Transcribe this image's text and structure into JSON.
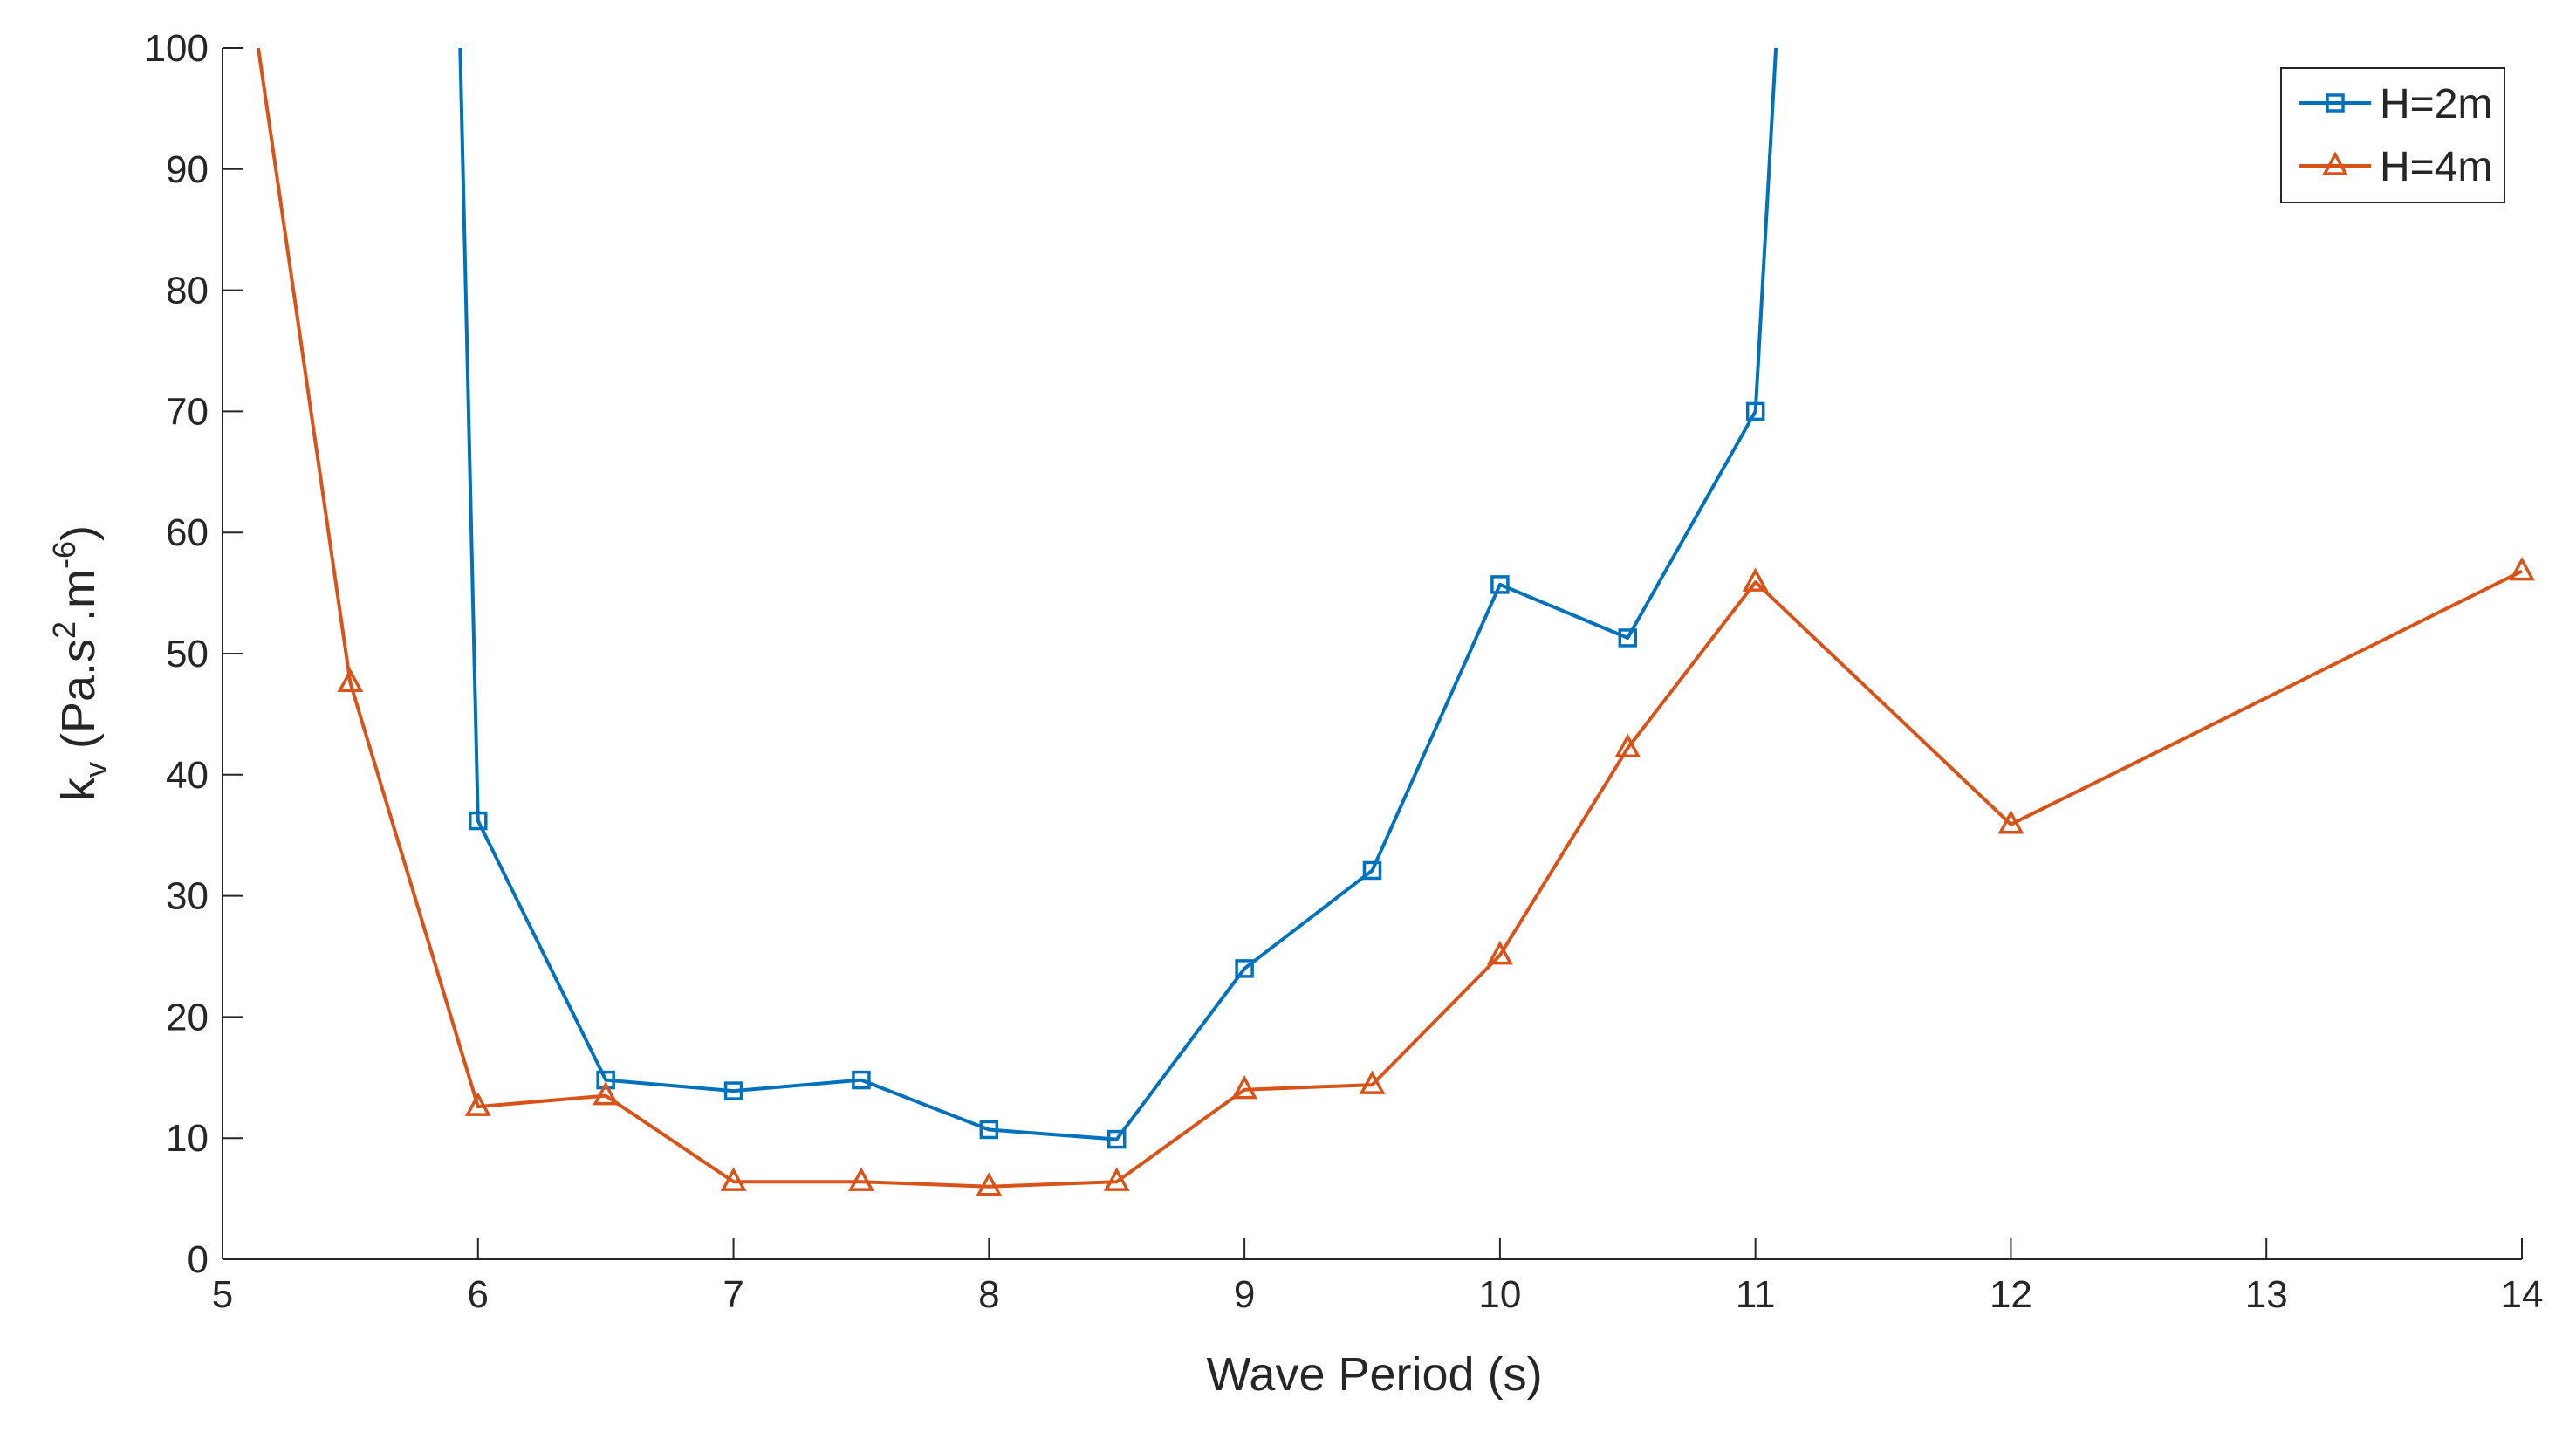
{
  "chart_data": {
    "type": "line",
    "title": "",
    "xlabel": "Wave Period (s)",
    "ylabel": {
      "base": "k",
      "base_sub": "v",
      "unit_open": "(Pa.s",
      "unit_sup1": "2",
      "unit_mid": ".m",
      "unit_sup2": "-6",
      "unit_close": ")"
    },
    "xlim": [
      5,
      14
    ],
    "ylim": [
      0,
      100
    ],
    "xticks": [
      5,
      6,
      7,
      8,
      9,
      10,
      11,
      12,
      13,
      14
    ],
    "yticks": [
      0,
      10,
      20,
      30,
      40,
      50,
      60,
      70,
      80,
      90,
      100
    ],
    "grid": false,
    "legend_position": "top-right",
    "series": [
      {
        "name": "H=2m",
        "color": "#0072BD",
        "marker": "square",
        "line_extends_above_ylim": true,
        "entry": {
          "x": 5.93,
          "y": 100
        },
        "exit": {
          "x": 11.08,
          "y": 100
        },
        "points": [
          {
            "x": 6.0,
            "y": 36.2
          },
          {
            "x": 6.5,
            "y": 14.8
          },
          {
            "x": 7.0,
            "y": 13.9
          },
          {
            "x": 7.5,
            "y": 14.8
          },
          {
            "x": 8.0,
            "y": 10.7
          },
          {
            "x": 8.5,
            "y": 9.9
          },
          {
            "x": 9.0,
            "y": 24.0
          },
          {
            "x": 9.5,
            "y": 32.1
          },
          {
            "x": 10.0,
            "y": 55.7
          },
          {
            "x": 10.5,
            "y": 51.3
          },
          {
            "x": 11.0,
            "y": 70.0
          }
        ]
      },
      {
        "name": "H=4m",
        "color": "#D95319",
        "marker": "triangle",
        "line_extends_above_ylim": true,
        "entry": {
          "x": 5.14,
          "y": 100
        },
        "exit": null,
        "points": [
          {
            "x": 5.5,
            "y": 47.6
          },
          {
            "x": 6.0,
            "y": 12.6
          },
          {
            "x": 6.5,
            "y": 13.5
          },
          {
            "x": 7.0,
            "y": 6.4
          },
          {
            "x": 7.5,
            "y": 6.4
          },
          {
            "x": 8.0,
            "y": 6.0
          },
          {
            "x": 8.5,
            "y": 6.4
          },
          {
            "x": 9.0,
            "y": 14.0
          },
          {
            "x": 9.5,
            "y": 14.4
          },
          {
            "x": 10.0,
            "y": 25.1
          },
          {
            "x": 10.5,
            "y": 42.2
          },
          {
            "x": 11.0,
            "y": 55.9
          },
          {
            "x": 12.0,
            "y": 35.9
          },
          {
            "x": 14.0,
            "y": 56.8
          }
        ]
      }
    ]
  }
}
